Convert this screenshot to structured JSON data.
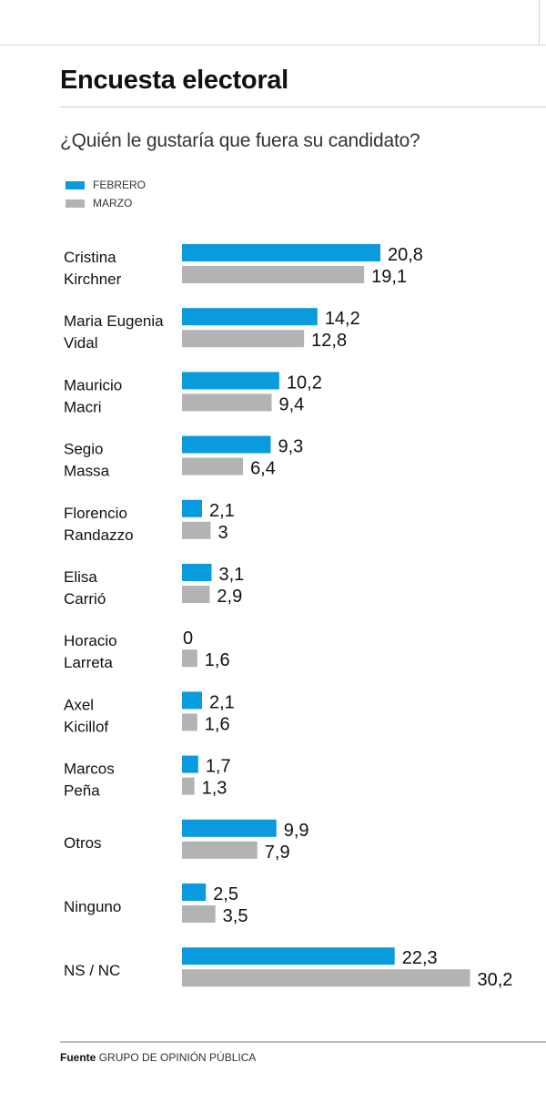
{
  "title": "Encuesta electoral",
  "subtitle": "¿Quién le gustaría que fuera su candidato?",
  "legend": [
    {
      "label": "FEBRERO",
      "color": "#0a9bdc"
    },
    {
      "label": "MARZO",
      "color": "#b3b3b3"
    }
  ],
  "footer": {
    "label": "Fuente",
    "source": "GRUPO DE OPINIÓN PÚBLICA"
  },
  "chart_data": {
    "type": "bar",
    "orientation": "horizontal",
    "title": "Encuesta electoral",
    "subtitle": "¿Quién le gustaría que fuera su candidato?",
    "categories": [
      [
        "Cristina",
        "Kirchner"
      ],
      [
        "Maria Eugenia",
        "Vidal"
      ],
      [
        "Mauricio",
        "Macri"
      ],
      [
        "Segio",
        "Massa"
      ],
      [
        "Florencio",
        "Randazzo"
      ],
      [
        "Elisa",
        "Carrió"
      ],
      [
        "Horacio",
        "Larreta"
      ],
      [
        "Axel",
        "Kicillof"
      ],
      [
        "Marcos",
        "Peña"
      ],
      [
        "Otros"
      ],
      [
        "Ninguno"
      ],
      [
        "NS / NC"
      ]
    ],
    "series": [
      {
        "name": "FEBRERO",
        "color": "#0a9bdc",
        "values": [
          20.8,
          14.2,
          10.2,
          9.3,
          2.1,
          3.1,
          0,
          2.1,
          1.7,
          9.9,
          2.5,
          22.3
        ],
        "labels": [
          "20,8",
          "14,2",
          "10,2",
          "9,3",
          "2,1",
          "3,1",
          "0",
          "2,1",
          "1,7",
          "9,9",
          "2,5",
          "22,3"
        ]
      },
      {
        "name": "MARZO",
        "color": "#b3b3b3",
        "values": [
          19.1,
          12.8,
          9.4,
          6.4,
          3,
          2.9,
          1.6,
          1.6,
          1.3,
          7.9,
          3.5,
          30.2
        ],
        "labels": [
          "19,1",
          "12,8",
          "9,4",
          "6,4",
          "3",
          "2,9",
          "1,6",
          "1,6",
          "1,3",
          "7,9",
          "3,5",
          "30,2"
        ]
      }
    ],
    "grid": false,
    "legend_position": "top-left"
  }
}
